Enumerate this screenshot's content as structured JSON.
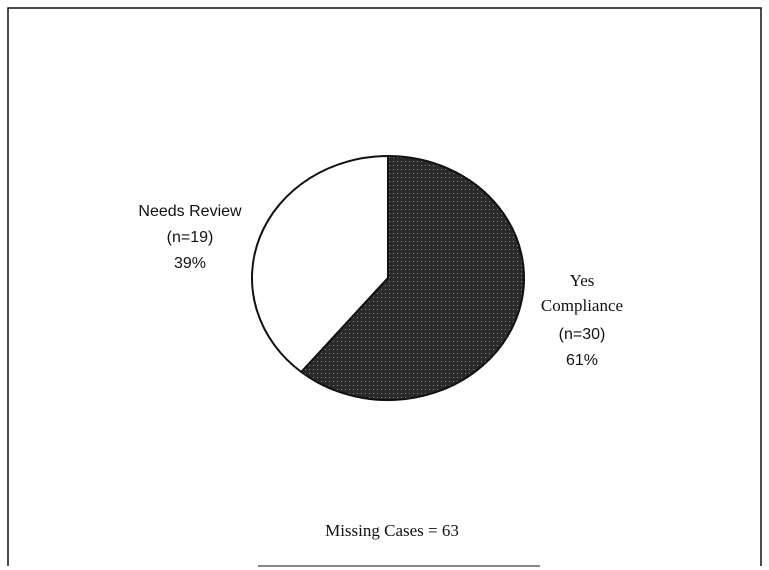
{
  "chart_data": {
    "type": "pie",
    "categories": [
      "Needs Review",
      "Yes Compliance"
    ],
    "values": [
      39,
      61
    ],
    "value_labels": [
      "39%",
      "61%"
    ],
    "n_labels": [
      "(n=19)",
      "(n=30)"
    ],
    "colors": [
      "#ffffff",
      "#2a2a2a"
    ],
    "note": "Missing Cases = 63"
  }
}
